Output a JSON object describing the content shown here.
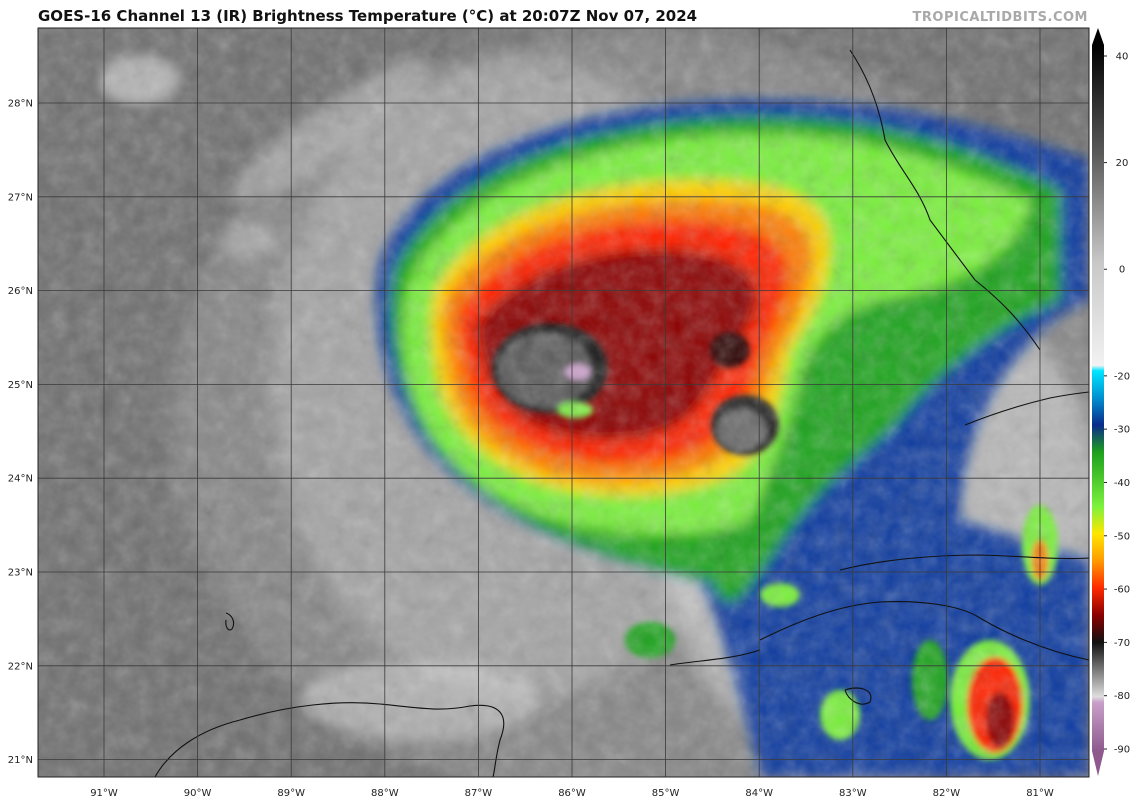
{
  "header": {
    "title": "GOES-16 Channel 13 (IR) Brightness Temperature (°C) at 20:07Z Nov 07, 2024",
    "credit": "TROPICALTIDBITS.COM"
  },
  "map": {
    "latitudes": [
      "28°N",
      "27°N",
      "26°N",
      "25°N",
      "24°N",
      "23°N",
      "22°N",
      "21°N"
    ],
    "longitudes": [
      "91°W",
      "90°W",
      "89°W",
      "88°W",
      "87°W",
      "86°W",
      "85°W",
      "84°W",
      "83°W",
      "82°W",
      "81°W"
    ],
    "background_color": "#6f6f6f",
    "grid_color": "#3a3a3a"
  },
  "colorbar": {
    "unit": "°C",
    "ticks": [
      "40",
      "20",
      "0",
      "-20",
      "-30",
      "-40",
      "-50",
      "-60",
      "-70",
      "-80",
      "-90"
    ],
    "stops": [
      {
        "value": 40,
        "color": "#000000"
      },
      {
        "value": 20,
        "color": "#5a5a5a"
      },
      {
        "value": 0,
        "color": "#c8c8c8"
      },
      {
        "value": -19,
        "color": "#f2f2f2"
      },
      {
        "value": -20,
        "color": "#00e5ff"
      },
      {
        "value": -25,
        "color": "#0090d0"
      },
      {
        "value": -30,
        "color": "#0a2a8a"
      },
      {
        "value": -35,
        "color": "#1ea01e"
      },
      {
        "value": -45,
        "color": "#7cf23c"
      },
      {
        "value": -50,
        "color": "#ffe600"
      },
      {
        "value": -55,
        "color": "#ff9a00"
      },
      {
        "value": -60,
        "color": "#ff2a00"
      },
      {
        "value": -65,
        "color": "#8a0000"
      },
      {
        "value": -70,
        "color": "#111111"
      },
      {
        "value": -80,
        "color": "#dedede"
      },
      {
        "value": -81,
        "color": "#c9a0c9"
      },
      {
        "value": -90,
        "color": "#8e5a8e"
      }
    ]
  }
}
